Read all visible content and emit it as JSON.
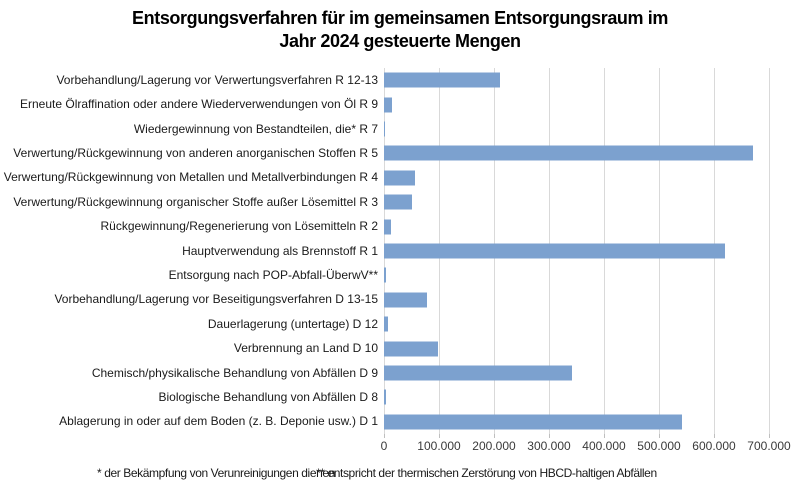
{
  "chart_data": {
    "type": "bar",
    "orientation": "horizontal",
    "title": "Entsorgungsverfahren für im gemeinsamen Entsorgungsraum im Jahr 2024 gesteuerte Mengen",
    "title_lines": [
      "Entsorgungsverfahren für im gemeinsamen Entsorgungsraum im",
      "Jahr 2024 gesteuerte Mengen"
    ],
    "categories": [
      "Vorbehandlung/Lagerung vor Verwertungsverfahren R 12-13",
      "Erneute Ölraffination oder andere Wiederverwendungen von Öl R 9",
      "Wiedergewinnung von Bestandteilen, die* R 7",
      "Verwertung/Rückgewinnung von anderen anorganischen Stoffen R 5",
      "Verwertung/Rückgewinnung von Metallen und Metallverbindungen R 4",
      "Verwertung/Rückgewinnung organischer Stoffe außer Lösemittel R 3",
      "Rückgewinnung/Regenerierung von Lösemitteln R 2",
      "Hauptverwendung als Brennstoff R 1",
      "Entsorgung nach POP-Abfall-ÜberwV**",
      "Vorbehandlung/Lagerung vor Beseitigungsverfahren D 13-15",
      "Dauerlagerung (untertage) D 12",
      "Verbrennung an Land D 10",
      "Chemisch/physikalische Behandlung von Abfällen D 9",
      "Biologische Behandlung von Abfällen D 8",
      "Ablagerung in oder auf dem Boden (z. B. Deponie usw.) D 1"
    ],
    "values": [
      211000,
      15000,
      1000,
      670000,
      57000,
      50000,
      13000,
      620000,
      3000,
      78000,
      8000,
      98000,
      341000,
      4000,
      541000
    ],
    "xlim": [
      0,
      700000
    ],
    "x_ticks": [
      "0",
      "100.000",
      "200.000",
      "300.000",
      "400.000",
      "500.000",
      "600.000",
      "700.000"
    ],
    "grid": true,
    "legend": "none",
    "footnotes": [
      "* der Bekämpfung von Verunreinigungen dienen",
      "** entspricht der thermischen Zerstörung von HBCD-haltigen Abfällen"
    ],
    "colors": {
      "bar": "#7CA1CF",
      "gridline": "#D9D9D9",
      "tick": "#BFBFBF",
      "text": "#000000"
    }
  }
}
